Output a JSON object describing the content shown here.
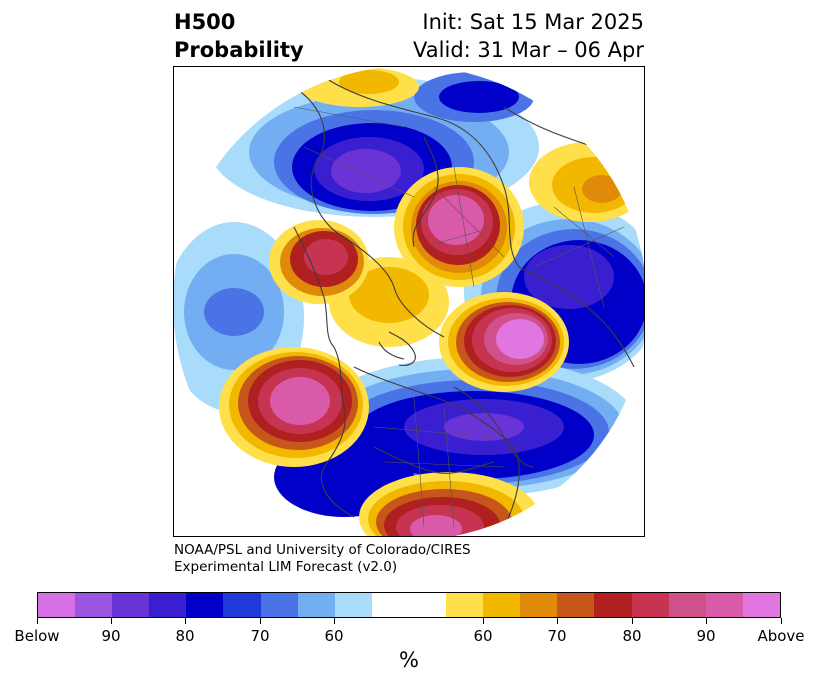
{
  "title": {
    "left_line1": "H500",
    "left_line2": "Probability",
    "right_line1": "Init: Sat 15 Mar 2025",
    "right_line2": "Valid: 31 Mar – 06 Apr"
  },
  "credit": {
    "line1": "NOAA/PSL and University of Colorado/CIRES",
    "line2": "Experimental LIM Forecast (v2.0)"
  },
  "colorbar": {
    "colors": [
      "#d66fe6",
      "#9b54e0",
      "#6a33d6",
      "#3a1fd0",
      "#0000c8",
      "#1f3ad8",
      "#4a74e6",
      "#74aef2",
      "#a9dbfa",
      "#ffffff",
      "#ffe04a",
      "#f2b800",
      "#e08a0a",
      "#c7561a",
      "#b02020",
      "#c63452",
      "#d0508a",
      "#d85aa8",
      "#e276e0"
    ],
    "tick_labels": [
      "Below",
      "90",
      "80",
      "70",
      "60",
      "60",
      "70",
      "80",
      "90",
      "Above"
    ],
    "units": "%"
  },
  "map": {
    "projection": "north-polar-stereographic",
    "coastline_color": "#3c3c3c"
  }
}
